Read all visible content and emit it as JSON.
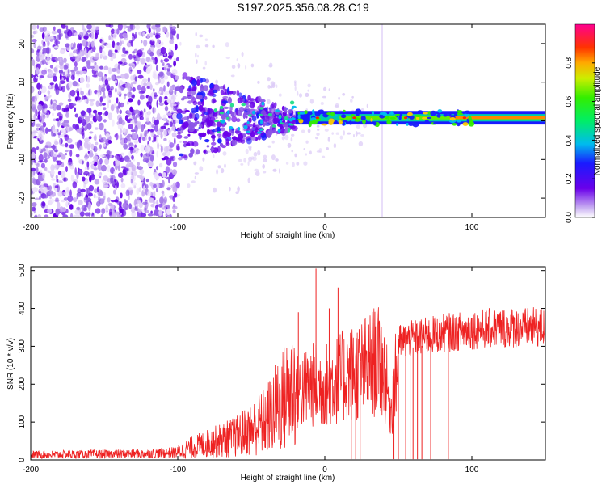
{
  "title": "S197.2025.356.08.28.C19",
  "chart_data": [
    {
      "type": "heatmap",
      "xlabel": "Height of straight line (km)",
      "ylabel": "Frequency (Hz)",
      "xlim": [
        -200,
        150
      ],
      "ylim": [
        -25,
        25
      ],
      "xticks": [
        -200,
        -100,
        0,
        100
      ],
      "xtick_labels": [
        "-200",
        "-100",
        "0",
        "100"
      ],
      "yticks": [
        -20,
        -10,
        0,
        10,
        20
      ],
      "ytick_labels": [
        "-20",
        "-10",
        "0",
        "10",
        "20"
      ],
      "colorbar": {
        "label": "Normalized spectral amplitude",
        "range": [
          0,
          1
        ],
        "ticks": [
          0.0,
          0.2,
          0.4,
          0.6,
          0.8
        ],
        "tick_labels": [
          "0.0",
          "0.2",
          "0.4",
          "0.6",
          "0.8"
        ]
      },
      "features": {
        "noise_region_x": [
          -200,
          -100
        ],
        "transition_region_x": [
          -100,
          -20
        ],
        "band_start_x": -20,
        "band_center_hz": 0.8,
        "band_halfwidth_hz": 0.8
      }
    },
    {
      "type": "line",
      "xlabel": "Height of straight line (km)",
      "ylabel": "SNR (10 * v/v)",
      "xlim": [
        -200,
        150
      ],
      "ylim": [
        0,
        510
      ],
      "xticks": [
        -200,
        -100,
        0,
        100
      ],
      "xtick_labels": [
        "-200",
        "-100",
        "0",
        "100"
      ],
      "yticks": [
        0,
        100,
        200,
        300,
        400,
        500
      ],
      "ytick_labels": [
        "0",
        "100",
        "200",
        "300",
        "400",
        "500"
      ],
      "series": [
        {
          "name": "SNR",
          "color": "#ee2222",
          "envelope_x": [
            -200,
            -120,
            -100,
            -90,
            -80,
            -70,
            -60,
            -50,
            -40,
            -30,
            -20,
            -10,
            0,
            10,
            20,
            30,
            35,
            40,
            45,
            50,
            60,
            80,
            100,
            120,
            150
          ],
          "envelope_y": [
            15,
            18,
            22,
            35,
            45,
            55,
            65,
            85,
            110,
            160,
            210,
            240,
            240,
            260,
            280,
            300,
            320,
            290,
            160,
            320,
            330,
            345,
            355,
            360,
            360
          ],
          "spikes": [
            {
              "x": -6,
              "y": 505
            },
            {
              "x": 9,
              "y": 455
            },
            {
              "x": -18,
              "y": 390
            },
            {
              "x": 3,
              "y": 400
            }
          ],
          "dropouts_x": [
            18,
            21,
            24,
            47,
            50,
            55,
            58,
            60,
            63,
            66,
            72,
            84
          ]
        }
      ]
    }
  ]
}
